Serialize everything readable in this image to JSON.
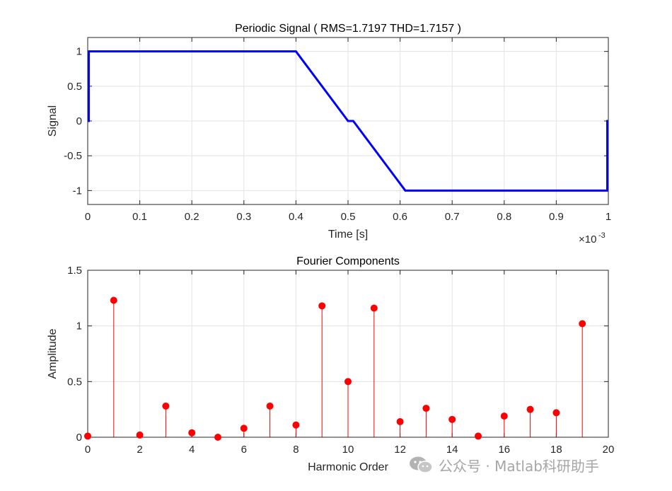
{
  "chart_data": [
    {
      "type": "line",
      "title": "Periodic Signal ( RMS=1.7197 THD=1.7157 )",
      "xlabel": "Time [s]",
      "ylabel": "Signal",
      "x_exponent_label": "×10",
      "x_exponent_value": "-3",
      "xlim": [
        0,
        0.001
      ],
      "ylim": [
        -1.2,
        1.2
      ],
      "xticks": [
        0,
        0.0001,
        0.0002,
        0.0003,
        0.0004,
        0.0005,
        0.0006,
        0.0007,
        0.0008,
        0.0009,
        0.001
      ],
      "xtick_labels": [
        "0",
        "0.1",
        "0.2",
        "0.3",
        "0.4",
        "0.5",
        "0.6",
        "0.7",
        "0.8",
        "0.9",
        "1"
      ],
      "yticks": [
        -1,
        -0.5,
        0,
        0.5,
        1
      ],
      "ytick_labels": [
        "-1",
        "-0.5",
        "0",
        "0.5",
        "1"
      ],
      "grid": true,
      "color": "#0000ff",
      "series": [
        {
          "x": [
            0,
            2e-06,
            2e-06,
            0.0004,
            0.0005,
            0.00051,
            0.00061,
            0.000998,
            0.000998,
            0.001
          ],
          "y": [
            0,
            0,
            1,
            1,
            0,
            0,
            -1,
            -1,
            0,
            0
          ]
        }
      ]
    },
    {
      "type": "stem",
      "title": "Fourier Components",
      "xlabel": "Harmonic Order",
      "ylabel": "Amplitude",
      "xlim": [
        0,
        20
      ],
      "ylim": [
        0,
        1.5
      ],
      "xticks": [
        0,
        2,
        4,
        6,
        8,
        10,
        12,
        14,
        16,
        18,
        20
      ],
      "xtick_labels": [
        "0",
        "2",
        "4",
        "6",
        "8",
        "10",
        "12",
        "14",
        "16",
        "18",
        "20"
      ],
      "yticks": [
        0,
        0.5,
        1,
        1.5
      ],
      "ytick_labels": [
        "0",
        "0.5",
        "1",
        "1.5"
      ],
      "grid": true,
      "color": "#ff0000",
      "x": [
        0,
        1,
        2,
        3,
        4,
        5,
        6,
        7,
        8,
        9,
        10,
        11,
        12,
        13,
        14,
        15,
        16,
        17,
        18,
        19
      ],
      "values": [
        0.01,
        1.23,
        0.02,
        0.28,
        0.04,
        0.0,
        0.08,
        0.28,
        0.11,
        1.18,
        0.5,
        1.16,
        0.14,
        0.26,
        0.16,
        0.01,
        0.19,
        0.25,
        0.22,
        1.02
      ]
    }
  ],
  "watermark": {
    "text": "公众号 · Matlab科研助手",
    "logo_icon": "wechat-icon"
  }
}
